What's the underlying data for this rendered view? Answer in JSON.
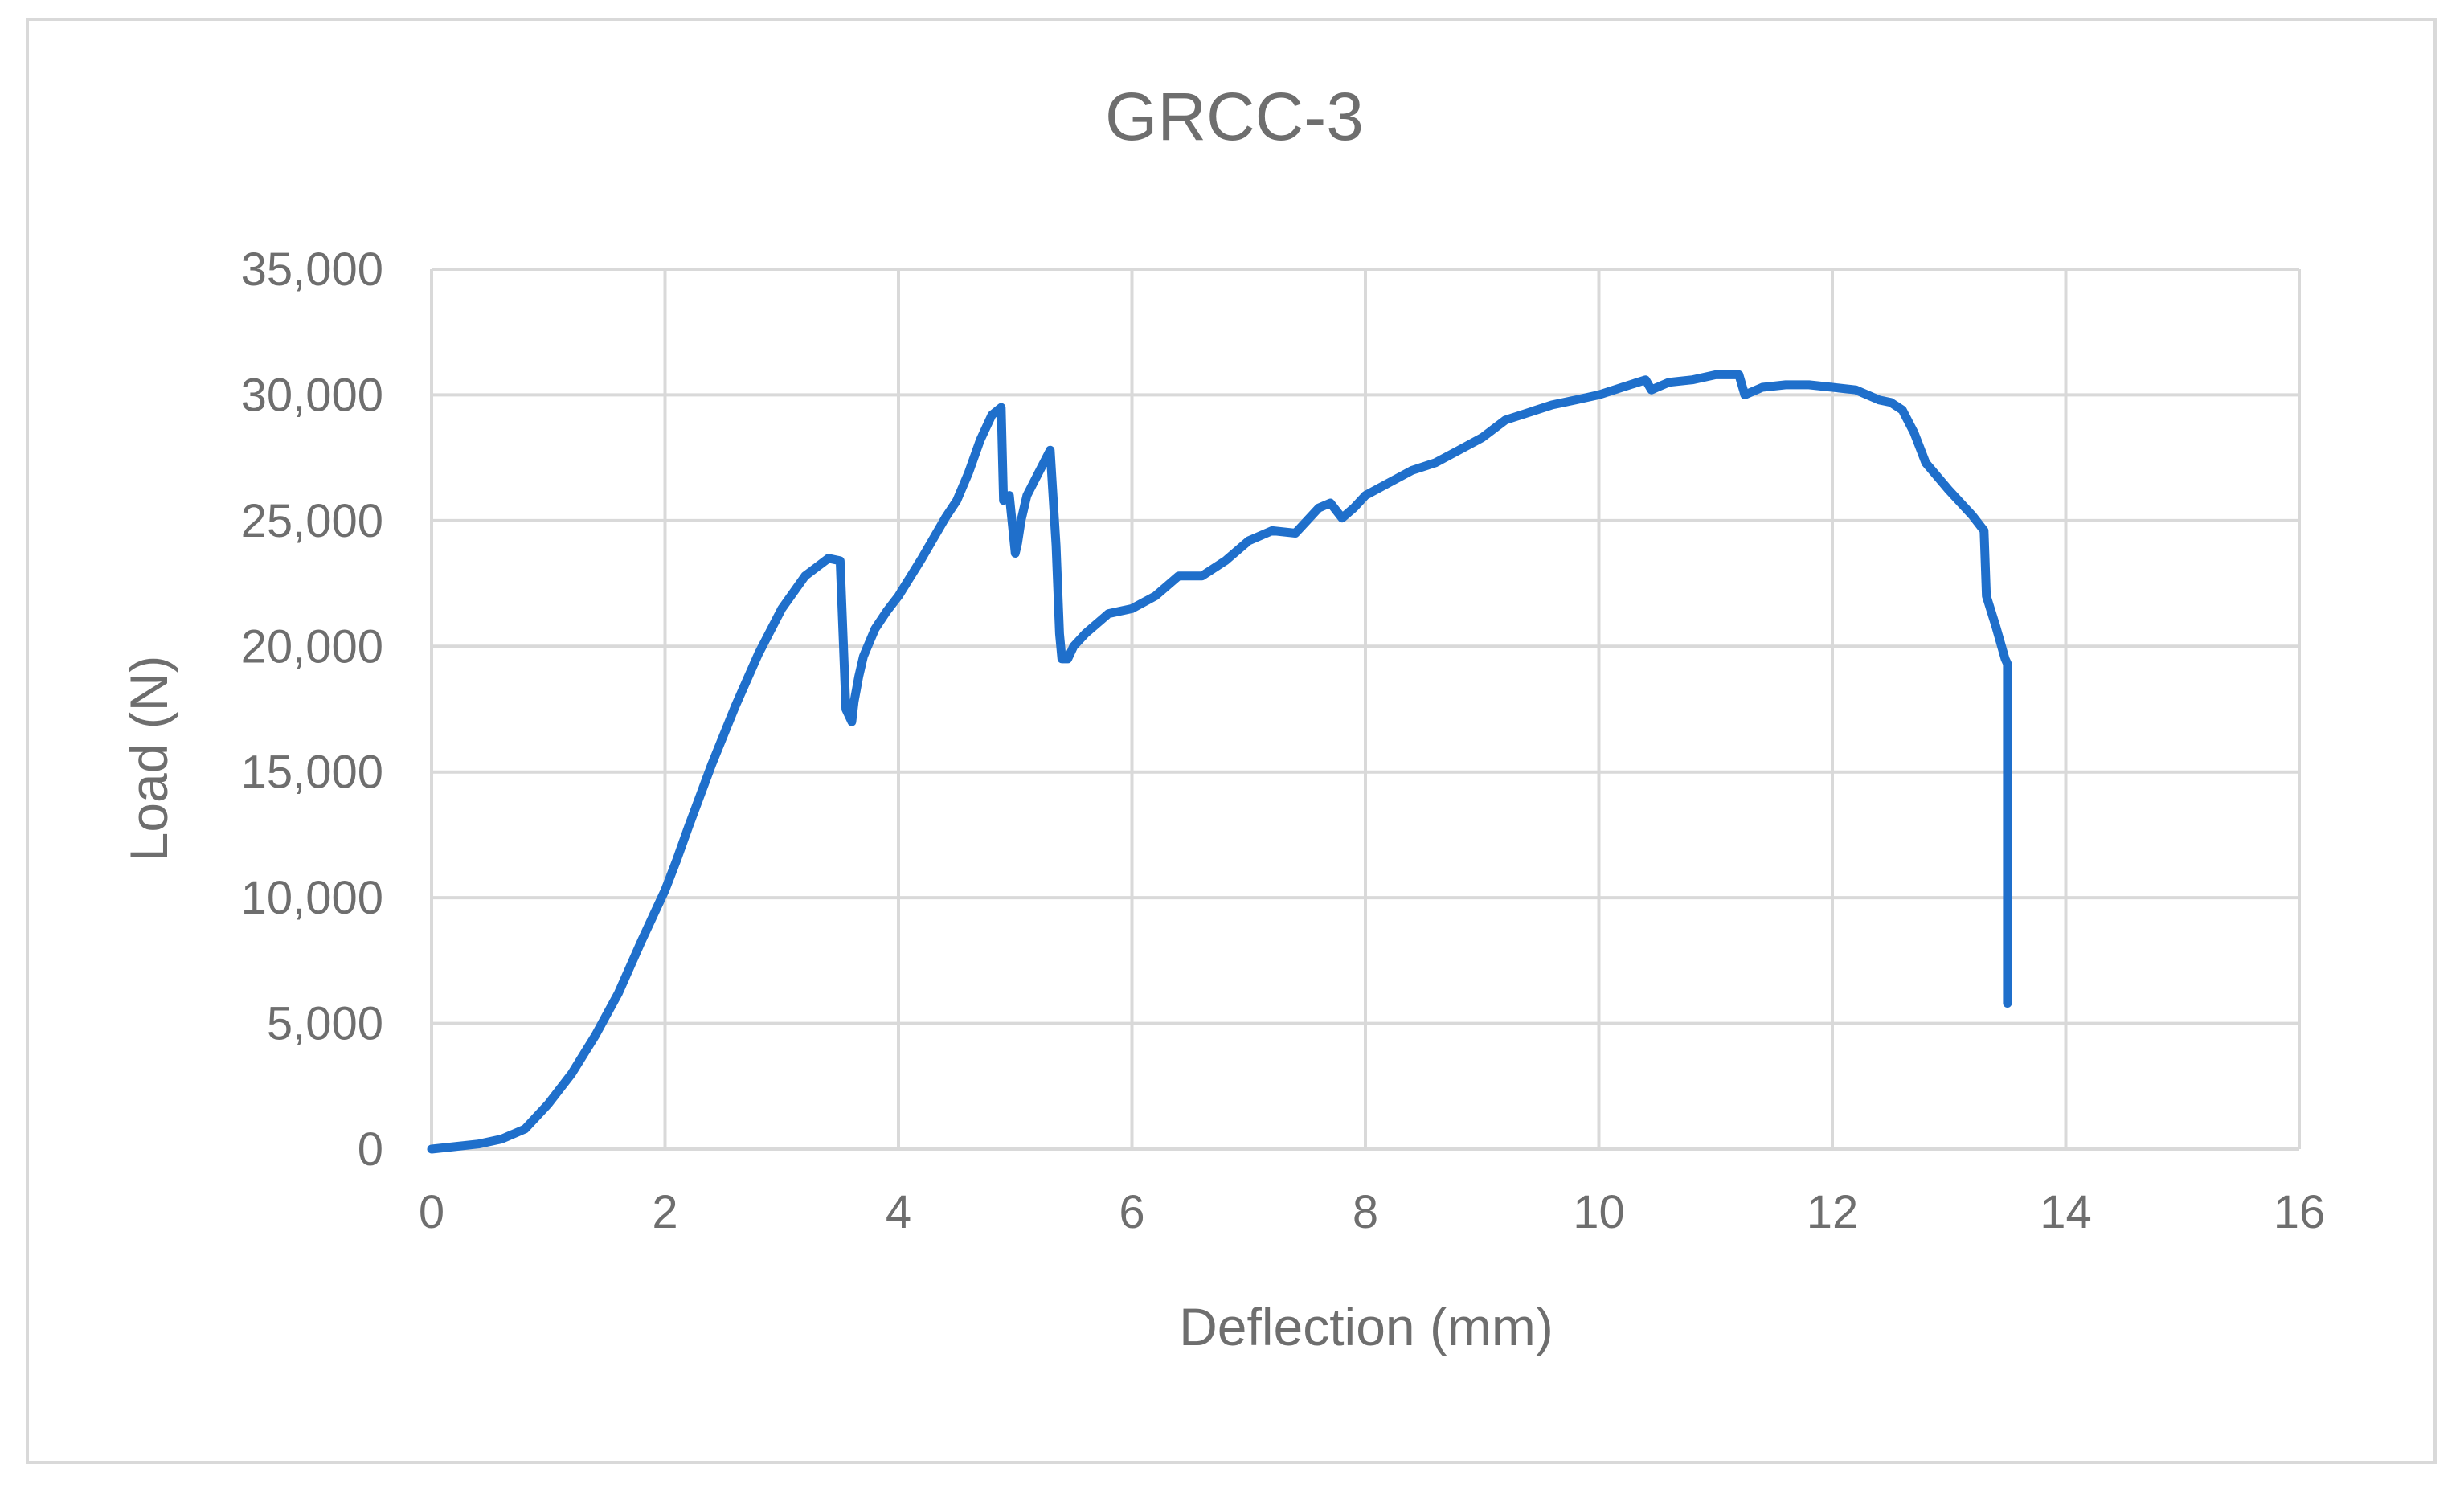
{
  "chart_data": {
    "type": "line",
    "title": "GRCC-3",
    "xlabel": "Deflection (mm)",
    "ylabel": "Load (N)",
    "xlim": [
      0,
      16
    ],
    "ylim": [
      0,
      35000
    ],
    "x_ticks": [
      "0",
      "2",
      "4",
      "6",
      "8",
      "10",
      "12",
      "14",
      "16"
    ],
    "y_ticks": [
      "0",
      "5,000",
      "10,000",
      "15,000",
      "20,000",
      "25,000",
      "30,000",
      "35,000"
    ],
    "grid": true,
    "legend": "none",
    "line_color": "#1f6fcb",
    "grid_color": "#d9d9d9",
    "series": [
      {
        "x": [
          0,
          0.2,
          0.4,
          0.6,
          0.8,
          1.0,
          1.2,
          1.4,
          1.6,
          1.8,
          2.0,
          2.1,
          2.2,
          2.4,
          2.6,
          2.8,
          3.0,
          3.2,
          3.4,
          3.5,
          3.55,
          3.6,
          3.62,
          3.66,
          3.7,
          3.8,
          3.9,
          4.0,
          4.2,
          4.4,
          4.5,
          4.6,
          4.7,
          4.8,
          4.88,
          4.9,
          4.95,
          5.0,
          5.02,
          5.05,
          5.1,
          5.2,
          5.3,
          5.35,
          5.38,
          5.4,
          5.45,
          5.5,
          5.6,
          5.8,
          6.0,
          6.2,
          6.4,
          6.6,
          6.8,
          7.0,
          7.2,
          7.4,
          7.5,
          7.6,
          7.7,
          7.8,
          7.9,
          8.0,
          8.2,
          8.4,
          8.6,
          8.8,
          9.0,
          9.2,
          9.4,
          9.6,
          9.8,
          10.0,
          10.2,
          10.4,
          10.45,
          10.5,
          10.6,
          10.8,
          11.0,
          11.2,
          11.25,
          11.4,
          11.6,
          11.8,
          12.0,
          12.2,
          12.4,
          12.5,
          12.6,
          12.7,
          12.8,
          13.0,
          13.2,
          13.3,
          13.32,
          13.4,
          13.48,
          13.5,
          13.5
        ],
        "y": [
          0,
          100,
          200,
          400,
          800,
          1800,
          3000,
          4500,
          6200,
          8300,
          10300,
          11500,
          12800,
          15300,
          17600,
          19700,
          21500,
          22800,
          23500,
          23400,
          17500,
          17000,
          17800,
          18800,
          19600,
          20700,
          21400,
          22000,
          23500,
          25100,
          25800,
          26900,
          28200,
          29200,
          29500,
          25800,
          26000,
          23700,
          24100,
          25000,
          26000,
          26900,
          27800,
          24000,
          20500,
          19500,
          19500,
          20000,
          20500,
          21300,
          21500,
          22000,
          22800,
          22800,
          23400,
          24200,
          24600,
          24500,
          25000,
          25500,
          25700,
          25100,
          25500,
          26000,
          26500,
          27000,
          27300,
          27800,
          28300,
          29000,
          29300,
          29600,
          29800,
          30000,
          30300,
          30600,
          30200,
          30300,
          30500,
          30600,
          30800,
          30800,
          30000,
          30300,
          30400,
          30400,
          30300,
          30200,
          29800,
          29700,
          29400,
          28500,
          27300,
          26200,
          25200,
          24600,
          22000,
          20800,
          19500,
          19300,
          5800
        ]
      }
    ]
  }
}
